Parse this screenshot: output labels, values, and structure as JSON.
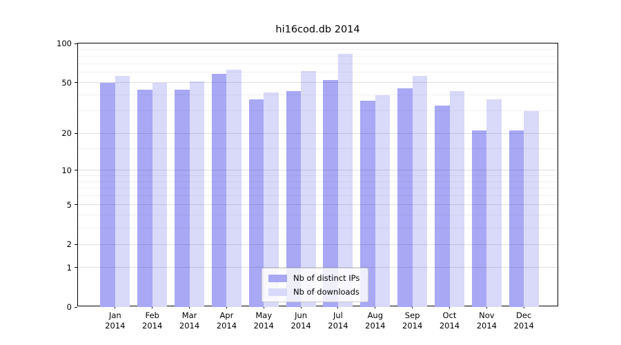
{
  "chart_data": {
    "type": "bar",
    "title": "hi16cod.db 2014",
    "categories": [
      "Jan 2014",
      "Feb 2014",
      "Mar 2014",
      "Apr 2014",
      "May 2014",
      "Jun 2014",
      "Jul 2014",
      "Aug 2014",
      "Sep 2014",
      "Oct 2014",
      "Nov 2014",
      "Dec 2014"
    ],
    "series": [
      {
        "name": "Nb of distinct IPs",
        "color": "#a8a8f5",
        "values": [
          50,
          44,
          44,
          58,
          37,
          43,
          52,
          36,
          45,
          33,
          21,
          21
        ]
      },
      {
        "name": "Nb of downloads",
        "color": "#d9d9fa",
        "values": [
          56,
          50,
          51,
          63,
          42,
          61,
          83,
          40,
          56,
          43,
          37,
          30
        ]
      }
    ],
    "y_scale": "log1p",
    "ylim": [
      0,
      100
    ],
    "y_ticks": [
      100,
      50,
      20,
      10,
      5,
      2,
      1,
      0
    ],
    "y_minor_ticks": [
      3,
      4,
      6,
      7,
      8,
      9,
      15,
      30,
      40,
      60,
      70,
      80,
      90
    ],
    "grid": "horizontal",
    "legend_position": "lower-center"
  }
}
